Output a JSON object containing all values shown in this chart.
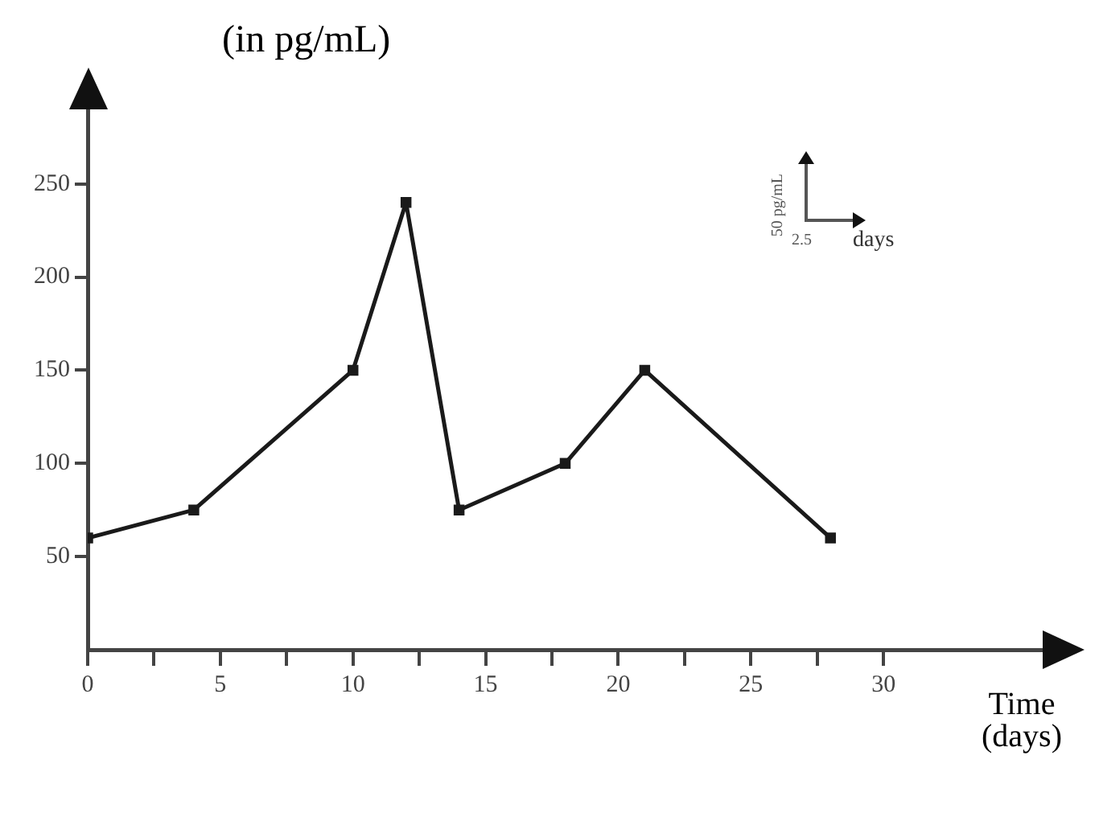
{
  "chart_data": {
    "type": "line",
    "ylabel": "(in pg/mL)",
    "xlabel": "Time (days)",
    "x": [
      0,
      4,
      10,
      12,
      14,
      18,
      21,
      28
    ],
    "series": [
      {
        "color": "#1a1a1a",
        "values": [
          60,
          75,
          150,
          240,
          75,
          100,
          150,
          60
        ]
      }
    ],
    "xlim": [
      0,
      36
    ],
    "ylim": [
      0,
      290
    ],
    "xticks": [
      0,
      {
        "value": 2.5,
        "label": null
      },
      5,
      {
        "value": 7.5,
        "label": null
      },
      10,
      {
        "value": 12.5,
        "label": null
      },
      15,
      {
        "value": 17.5,
        "label": null
      },
      20,
      {
        "value": 22.5,
        "label": null
      },
      25,
      {
        "value": 27.5,
        "label": null
      },
      30
    ],
    "yticks": [
      50,
      100,
      150,
      200,
      250
    ],
    "annotations": [
      "50 pg/mL",
      "2.5",
      "days"
    ],
    "marker": "square",
    "line_style": "solid",
    "grid": false,
    "legend": false
  }
}
